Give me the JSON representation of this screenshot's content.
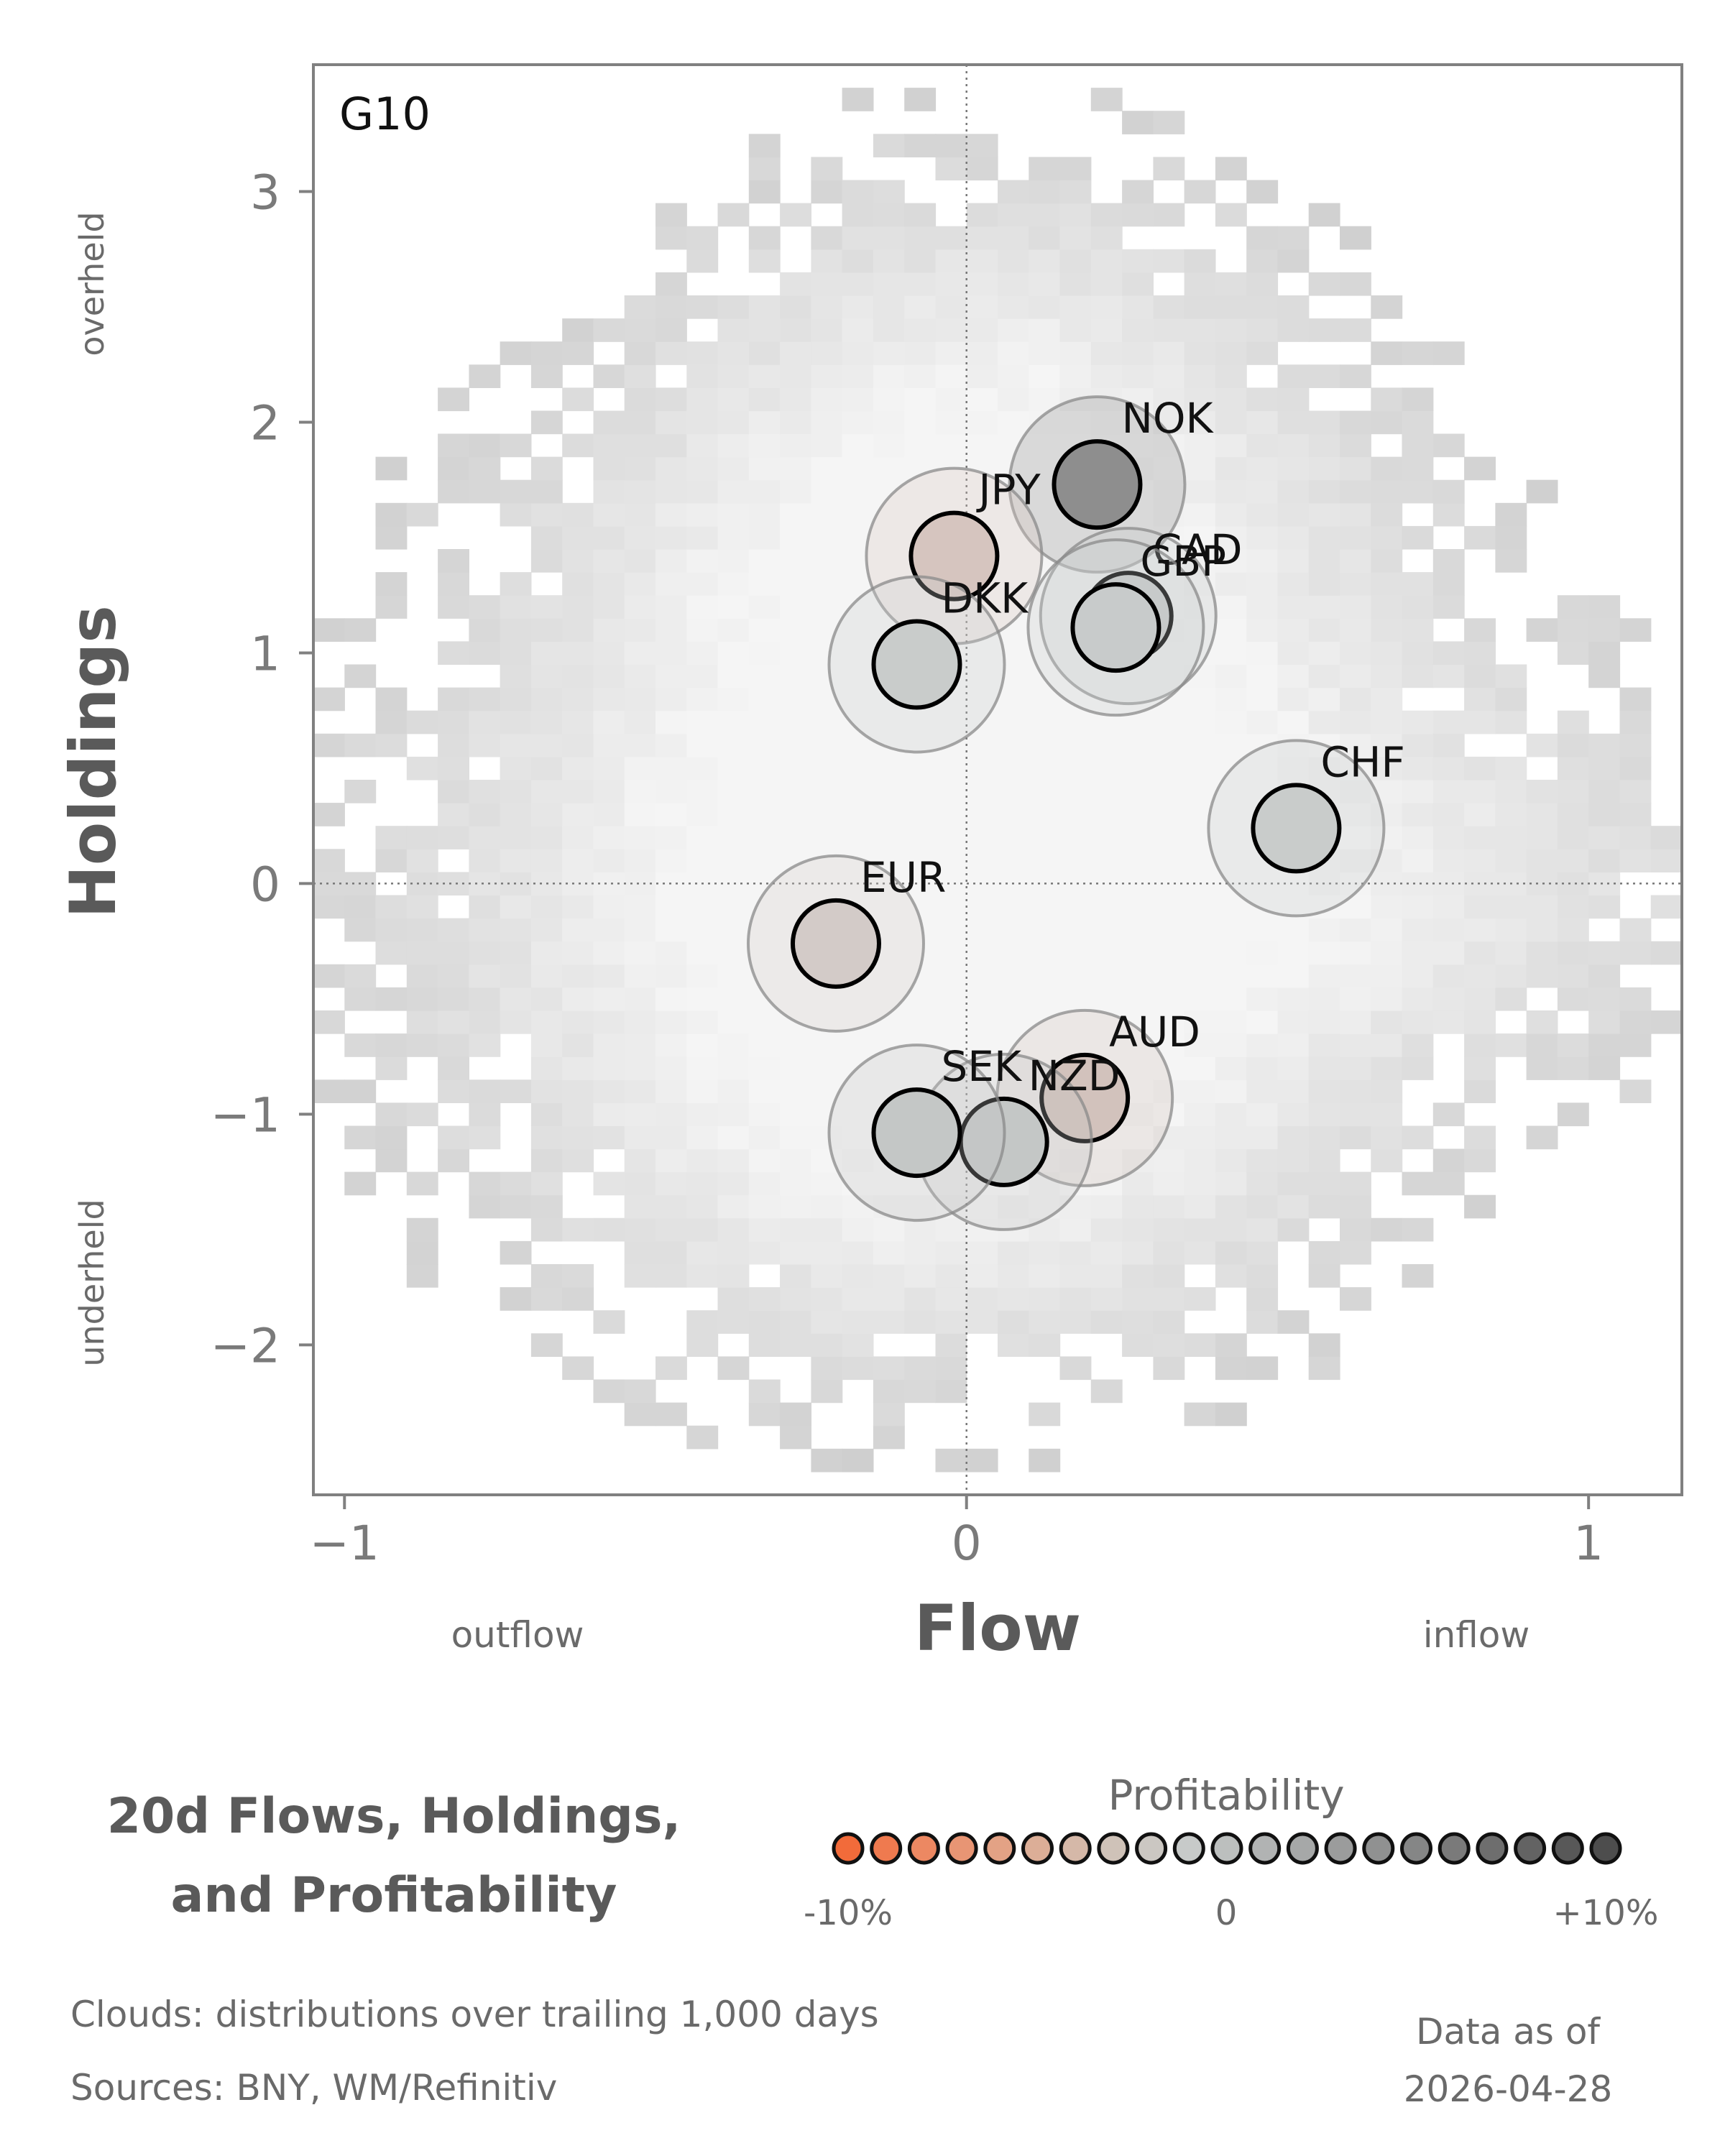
{
  "chart_data": {
    "type": "scatter",
    "panel_label": "G10",
    "xlabel": "Flow",
    "ylabel": "Holdings",
    "xlim": [
      -1.05,
      1.15
    ],
    "ylim": [
      -2.65,
      3.55
    ],
    "x_ticks": [
      {
        "value": -1,
        "label": "−1"
      },
      {
        "value": 0,
        "label": "0"
      },
      {
        "value": 1,
        "label": "1"
      }
    ],
    "y_ticks": [
      {
        "value": -2,
        "label": "−2"
      },
      {
        "value": -1,
        "label": "−1"
      },
      {
        "value": 0,
        "label": "0"
      },
      {
        "value": 1,
        "label": "1"
      },
      {
        "value": 2,
        "label": "2"
      },
      {
        "value": 3,
        "label": "3"
      }
    ],
    "x_annotations": {
      "low": "outflow",
      "high": "inflow"
    },
    "y_annotations": {
      "high": "overheld",
      "low": "underheld"
    },
    "reference_lines": {
      "x": 0,
      "y": 0,
      "style": "dotted"
    },
    "background": "2D histogram clouds of trailing distributions (grayscale)",
    "points": [
      {
        "label": "NOK",
        "x": 0.21,
        "y": 1.73,
        "profitability": 0.1,
        "color": "#8e8e8e"
      },
      {
        "label": "JPY",
        "x": -0.02,
        "y": 1.42,
        "profitability": -0.02,
        "color": "#d6c5bf"
      },
      {
        "label": "CAD",
        "x": 0.26,
        "y": 1.16,
        "profitability": 0.02,
        "color": "#c6c9c9"
      },
      {
        "label": "GBP",
        "x": 0.24,
        "y": 1.11,
        "profitability": 0.02,
        "color": "#c8cbcb"
      },
      {
        "label": "DKK",
        "x": -0.08,
        "y": 0.95,
        "profitability": 0.01,
        "color": "#c9cccb"
      },
      {
        "label": "CHF",
        "x": 0.53,
        "y": 0.24,
        "profitability": 0.01,
        "color": "#c9cccb"
      },
      {
        "label": "EUR",
        "x": -0.21,
        "y": -0.26,
        "profitability": -0.01,
        "color": "#d3cbc8"
      },
      {
        "label": "AUD",
        "x": 0.19,
        "y": -0.93,
        "profitability": -0.02,
        "color": "#d2c2bc"
      },
      {
        "label": "NZD",
        "x": 0.06,
        "y": -1.12,
        "profitability": 0.02,
        "color": "#c4c7c6"
      },
      {
        "label": "SEK",
        "x": -0.08,
        "y": -1.08,
        "profitability": 0.02,
        "color": "#c4c7c6"
      }
    ],
    "legend": {
      "title": "Profitability",
      "min_label": "-10%",
      "mid_label": "0",
      "max_label": "+10%",
      "colors": [
        "#f26b3a",
        "#ef7a4f",
        "#ec8862",
        "#e89574",
        "#e3a285",
        "#dcae97",
        "#d5b8a8",
        "#cfc2b8",
        "#cbc7c2",
        "#c7cac9",
        "#bcbfbe",
        "#b1b3b3",
        "#a6a8a8",
        "#9b9c9c",
        "#909191",
        "#858686",
        "#7a7a7a",
        "#6e6e6e",
        "#636363",
        "#585858",
        "#4d4d4d"
      ]
    },
    "grid": false
  },
  "footer": {
    "chart_title_line1": "20d Flows, Holdings,",
    "chart_title_line2": "and Profitability",
    "clouds_note": "Clouds:  distributions over trailing 1,000 days",
    "sources_note": "Sources:  BNY, WM/Refinitiv",
    "data_as_of_label": "Data as of",
    "data_as_of_date": "2026-04-28"
  }
}
